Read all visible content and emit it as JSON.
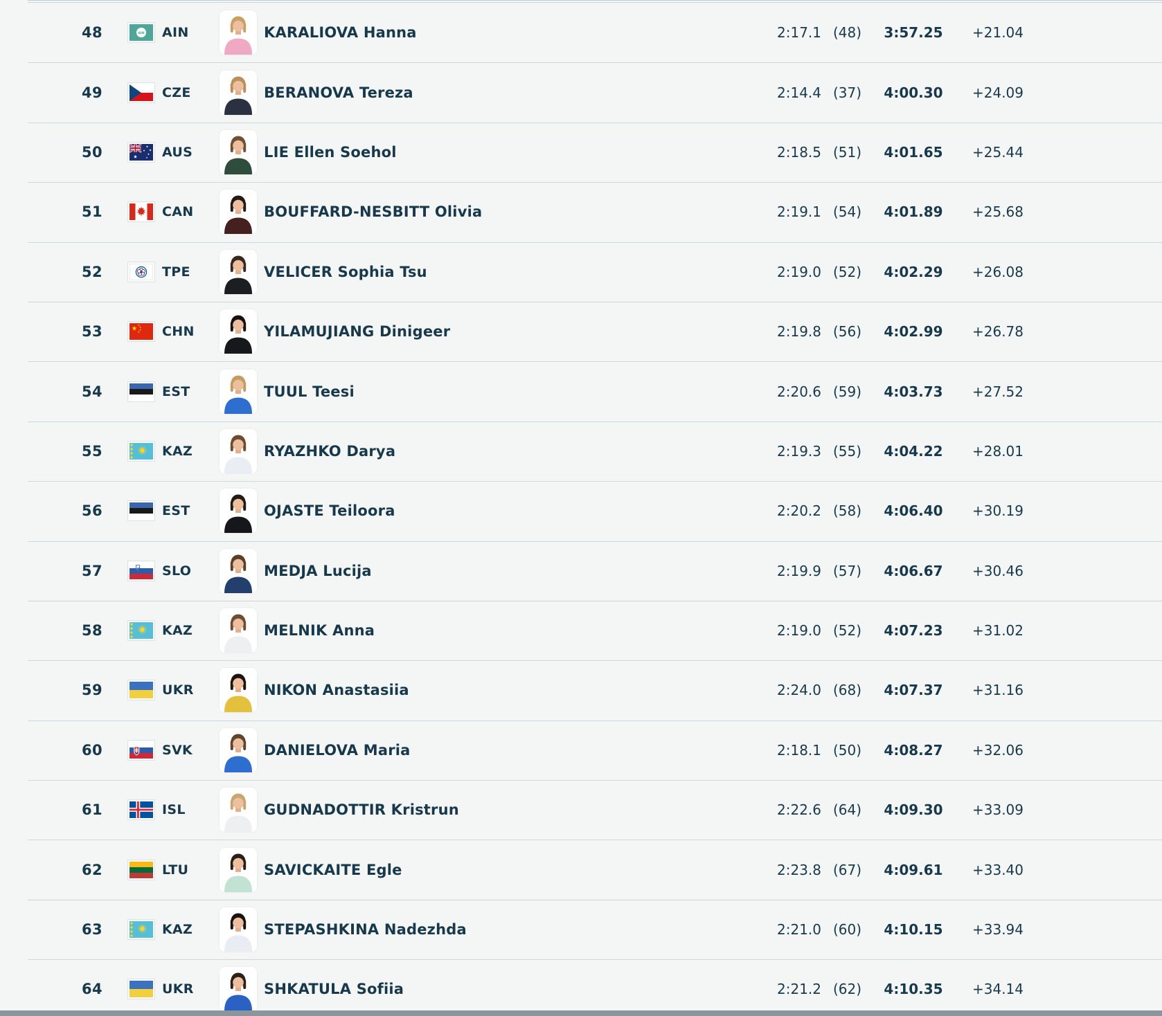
{
  "page": {
    "background": "#f4f6f5",
    "text_color": "#17394b",
    "divider_color": "#ccd8db",
    "scrollbar_color": "#8a969b",
    "photo_background": "#ffffff"
  },
  "results": {
    "rows": [
      {
        "rank": "48",
        "noc": "AIN",
        "athlete": "KARALIOVA Hanna",
        "intermediate": "2:17.1",
        "intermediate_rank": "(48)",
        "finish": "3:57.25",
        "diff": "+21.04",
        "portrait": {
          "hair": "#c9a064",
          "jacket": "#efa9c3"
        }
      },
      {
        "rank": "49",
        "noc": "CZE",
        "athlete": "BERANOVA Tereza",
        "intermediate": "2:14.4",
        "intermediate_rank": "(37)",
        "finish": "4:00.30",
        "diff": "+24.09",
        "portrait": {
          "hair": "#b8905e",
          "jacket": "#2b3140"
        }
      },
      {
        "rank": "50",
        "noc": "AUS",
        "athlete": "LIE Ellen Soehol",
        "intermediate": "2:18.5",
        "intermediate_rank": "(51)",
        "finish": "4:01.65",
        "diff": "+25.44",
        "portrait": {
          "hair": "#6f5233",
          "jacket": "#2f4d3c"
        }
      },
      {
        "rank": "51",
        "noc": "CAN",
        "athlete": "BOUFFARD-NESBITT Olivia",
        "intermediate": "2:19.1",
        "intermediate_rank": "(54)",
        "finish": "4:01.89",
        "diff": "+25.68",
        "portrait": {
          "hair": "#221a15",
          "jacket": "#46201f"
        }
      },
      {
        "rank": "52",
        "noc": "TPE",
        "athlete": "VELICER Sophia Tsu",
        "intermediate": "2:19.0",
        "intermediate_rank": "(52)",
        "finish": "4:02.29",
        "diff": "+26.08",
        "portrait": {
          "hair": "#39281f",
          "jacket": "#1d1e22"
        }
      },
      {
        "rank": "53",
        "noc": "CHN",
        "athlete": "YILAMUJIANG Dinigeer",
        "intermediate": "2:19.8",
        "intermediate_rank": "(56)",
        "finish": "4:02.99",
        "diff": "+26.78",
        "portrait": {
          "hair": "#171210",
          "jacket": "#17181c"
        }
      },
      {
        "rank": "54",
        "noc": "EST",
        "athlete": "TUUL Teesi",
        "intermediate": "2:20.6",
        "intermediate_rank": "(59)",
        "finish": "4:03.73",
        "diff": "+27.52",
        "portrait": {
          "hair": "#c49d60",
          "jacket": "#2e6ecf"
        }
      },
      {
        "rank": "55",
        "noc": "KAZ",
        "athlete": "RYAZHKO Darya",
        "intermediate": "2:19.3",
        "intermediate_rank": "(55)",
        "finish": "4:04.22",
        "diff": "+28.01",
        "portrait": {
          "hair": "#6b4c31",
          "jacket": "#e9eef5"
        }
      },
      {
        "rank": "56",
        "noc": "EST",
        "athlete": "OJASTE Teiloora",
        "intermediate": "2:20.2",
        "intermediate_rank": "(58)",
        "finish": "4:06.40",
        "diff": "+30.19",
        "portrait": {
          "hair": "#231a13",
          "jacket": "#15171b"
        }
      },
      {
        "rank": "57",
        "noc": "SLO",
        "athlete": "MEDJA Lucija",
        "intermediate": "2:19.9",
        "intermediate_rank": "(57)",
        "finish": "4:06.67",
        "diff": "+30.46",
        "portrait": {
          "hair": "#5a4028",
          "jacket": "#23406d"
        }
      },
      {
        "rank": "58",
        "noc": "KAZ",
        "athlete": "MELNIK Anna",
        "intermediate": "2:19.0",
        "intermediate_rank": "(52)",
        "finish": "4:07.23",
        "diff": "+31.02",
        "portrait": {
          "hair": "#6d4e33",
          "jacket": "#edeff1"
        }
      },
      {
        "rank": "59",
        "noc": "UKR",
        "athlete": "NIKON Anastasiia",
        "intermediate": "2:24.0",
        "intermediate_rank": "(68)",
        "finish": "4:07.37",
        "diff": "+31.16",
        "portrait": {
          "hair": "#1b1410",
          "jacket": "#e3c13d"
        }
      },
      {
        "rank": "60",
        "noc": "SVK",
        "athlete": "DANIELOVA Maria",
        "intermediate": "2:18.1",
        "intermediate_rank": "(50)",
        "finish": "4:08.27",
        "diff": "+32.06",
        "portrait": {
          "hair": "#5e452c",
          "jacket": "#2e6ecf"
        }
      },
      {
        "rank": "61",
        "noc": "ISL",
        "athlete": "GUDNADOTTIR Kristrun",
        "intermediate": "2:22.6",
        "intermediate_rank": "(64)",
        "finish": "4:09.30",
        "diff": "+33.09",
        "portrait": {
          "hair": "#c7a76f",
          "jacket": "#edeff1"
        }
      },
      {
        "rank": "62",
        "noc": "LTU",
        "athlete": "SAVICKAITE Egle",
        "intermediate": "2:23.8",
        "intermediate_rank": "(67)",
        "finish": "4:09.61",
        "diff": "+33.40",
        "portrait": {
          "hair": "#2a1f18",
          "jacket": "#c2e2d3"
        }
      },
      {
        "rank": "63",
        "noc": "KAZ",
        "athlete": "STEPASHKINA Nadezhda",
        "intermediate": "2:21.0",
        "intermediate_rank": "(60)",
        "finish": "4:10.15",
        "diff": "+33.94",
        "portrait": {
          "hair": "#181310",
          "jacket": "#e9edf3"
        }
      },
      {
        "rank": "64",
        "noc": "UKR",
        "athlete": "SHKATULA Sofiia",
        "intermediate": "2:21.2",
        "intermediate_rank": "(62)",
        "finish": "4:10.35",
        "diff": "+34.14",
        "portrait": {
          "hair": "#2d2018",
          "jacket": "#2a61c3"
        }
      }
    ]
  }
}
